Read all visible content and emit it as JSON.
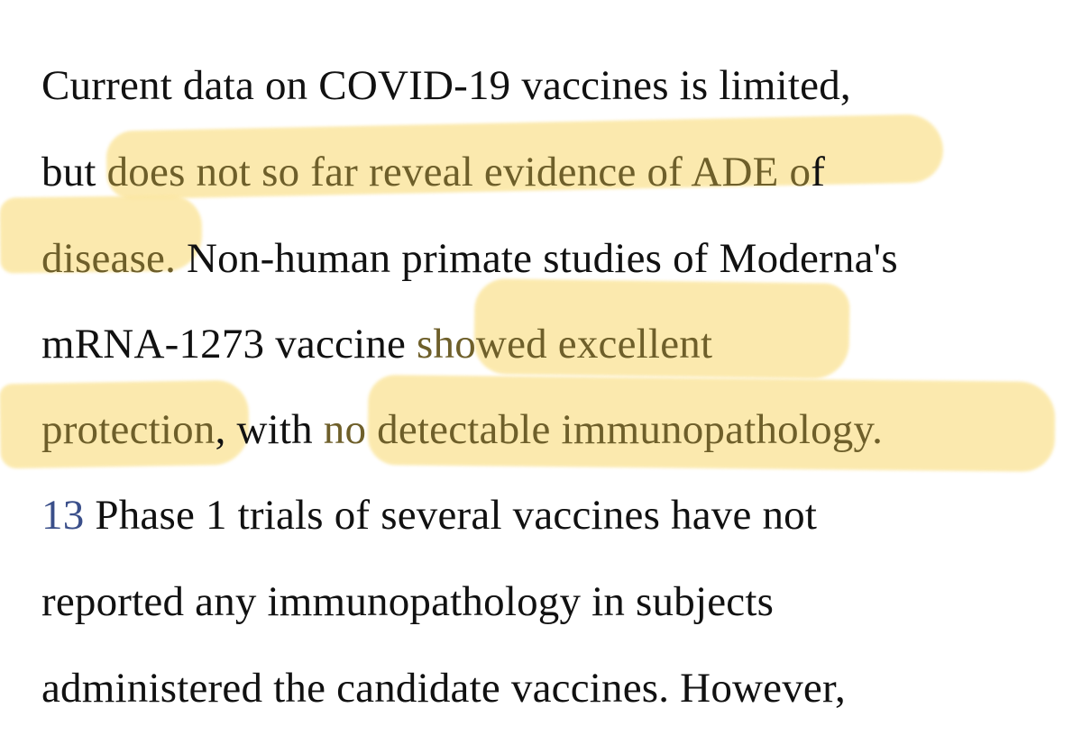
{
  "document": {
    "lines": [
      {
        "segments": [
          {
            "text": "Current data on COVID-19 vaccines is limited,",
            "kind": "plain"
          }
        ]
      },
      {
        "segments": [
          {
            "text": "but ",
            "kind": "plain"
          },
          {
            "text": "does not so far reveal evidence of ADE o",
            "kind": "marked"
          },
          {
            "text": "f",
            "kind": "plain"
          }
        ]
      },
      {
        "segments": [
          {
            "text": "disease.",
            "kind": "marked"
          },
          {
            "text": " Non-human primate studies of Moderna's",
            "kind": "plain"
          }
        ]
      },
      {
        "segments": [
          {
            "text": "mRNA-1273 vaccine ",
            "kind": "plain"
          },
          {
            "text": "showed excellent",
            "kind": "marked"
          }
        ]
      },
      {
        "segments": [
          {
            "text": "protection",
            "kind": "marked"
          },
          {
            "text": ", with ",
            "kind": "plain"
          },
          {
            "text": "no detectable immunopathology.",
            "kind": "marked"
          }
        ]
      },
      {
        "segments": [
          {
            "text": "13",
            "kind": "ref"
          },
          {
            "text": " Phase 1 trials of several vaccines have not",
            "kind": "plain"
          }
        ]
      },
      {
        "segments": [
          {
            "text": "reported any immunopathology in subjects",
            "kind": "plain"
          }
        ]
      },
      {
        "segments": [
          {
            "text": "administered the candidate vaccines. However,",
            "kind": "plain"
          }
        ]
      }
    ]
  },
  "colors": {
    "text": "#111111",
    "highlight": "#fbe6a0",
    "highlighted_text": "#6e5f2a",
    "reference_link": "#3a4f8a"
  }
}
